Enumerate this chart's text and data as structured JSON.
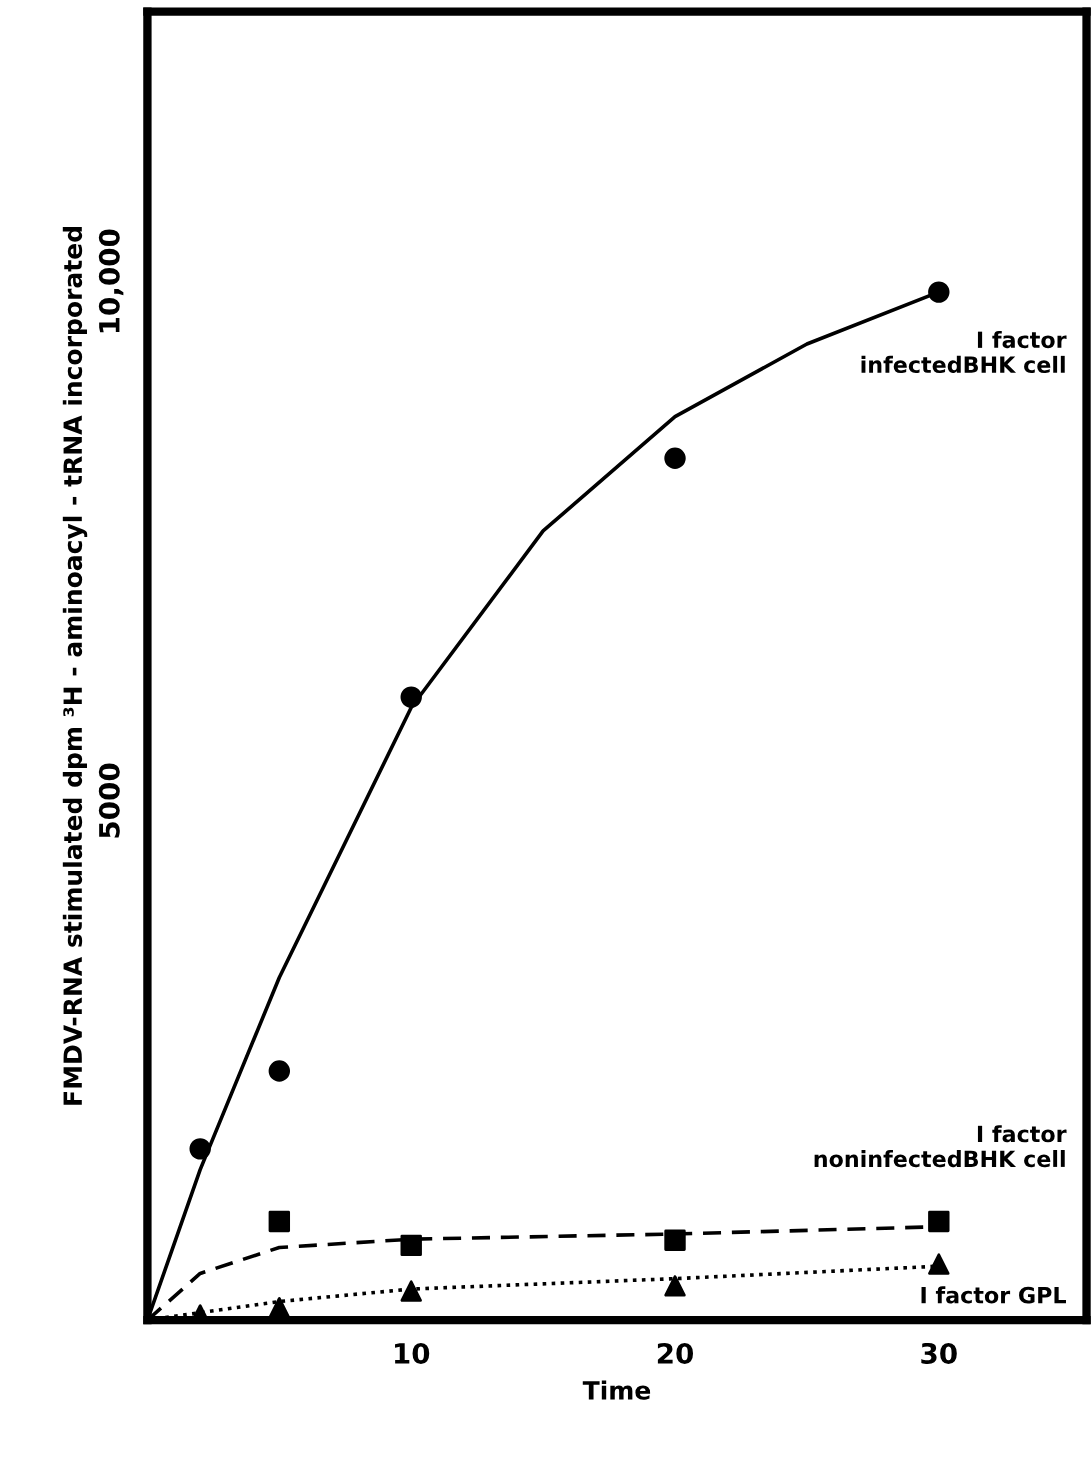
{
  "chart_data": {
    "type": "scatter",
    "xlabel": "Time",
    "ylabel": "FMDV-RNA stimulated dpm ³H - aminoacyl - tRNA incorporated",
    "xlim": [
      0,
      35.6
    ],
    "ylim": [
      0,
      12600
    ],
    "xticks": [
      10,
      20,
      30
    ],
    "yticks": [
      {
        "value": 5000,
        "label": "5000"
      },
      {
        "value": 10000,
        "label": "10,000"
      }
    ],
    "grid": false,
    "legend": false,
    "series": [
      {
        "type": "line",
        "color": "#000000",
        "line_style": "solid",
        "marker": "none",
        "x": [
          0,
          2,
          5,
          10,
          15,
          20,
          25,
          30
        ],
        "values": [
          0,
          1450,
          3300,
          5900,
          7600,
          8700,
          9400,
          9900
        ]
      },
      {
        "type": "line",
        "color": "#000000",
        "line_style": "dashed",
        "marker": "none",
        "x": [
          0,
          2,
          5,
          10,
          20,
          30
        ],
        "values": [
          0,
          450,
          700,
          780,
          830,
          900
        ]
      },
      {
        "type": "line",
        "color": "#000000",
        "line_style": "dotted",
        "marker": "none",
        "x": [
          0,
          5,
          10,
          20,
          30
        ],
        "values": [
          0,
          180,
          300,
          400,
          520
        ]
      },
      {
        "name": "I factor\ninfectedBHK cell",
        "color": "#000000",
        "marker": "circle",
        "x": [
          2,
          5,
          10,
          20,
          30
        ],
        "values": [
          1650,
          2400,
          6000,
          8300,
          9900
        ]
      },
      {
        "name": "I factor\nnoninfectedBHK cell",
        "color": "#000000",
        "marker": "square",
        "x": [
          5,
          10,
          20,
          30
        ],
        "values": [
          950,
          720,
          770,
          950
        ]
      },
      {
        "name": "I factor GPL",
        "color": "#000000",
        "marker": "triangle",
        "x": [
          2,
          5,
          10,
          20,
          30
        ],
        "values": [
          50,
          120,
          280,
          330,
          540
        ]
      }
    ]
  }
}
